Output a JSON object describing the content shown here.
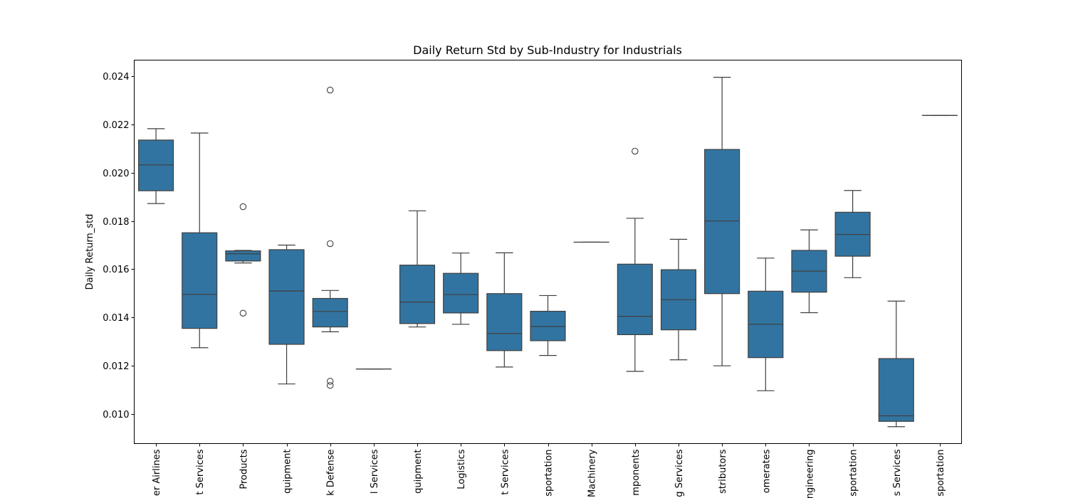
{
  "chart_data": {
    "type": "box",
    "title": "Daily Return Std by Sub-Industry for Industrials",
    "xlabel": "",
    "ylabel": "Daily Return_std",
    "ylim": [
      0.00878,
      0.02466
    ],
    "yticks": [
      0.01,
      0.012,
      0.014,
      0.016,
      0.018,
      0.02,
      0.022,
      0.024
    ],
    "ytick_labels": [
      "0.010",
      "0.012",
      "0.014",
      "0.016",
      "0.018",
      "0.020",
      "0.022",
      "0.024"
    ],
    "grid": false,
    "box_color": "#3274a1",
    "categories": [
      "er Airlines",
      "t Services",
      "Products",
      "quipment",
      "k Defense",
      "l Services",
      "quipment",
      "Logistics",
      "t Services",
      "sportation",
      "Machinery",
      "mponents",
      "g Services",
      "stributors",
      "omerates",
      "ngineering",
      "sportation",
      "s Services",
      "sportation"
    ],
    "boxes": [
      {
        "whislo": 0.01872,
        "q1": 0.01925,
        "med": 0.02032,
        "q3": 0.02135,
        "whishi": 0.02182,
        "fliers": []
      },
      {
        "whislo": 0.01275,
        "q1": 0.01355,
        "med": 0.01496,
        "q3": 0.01751,
        "whishi": 0.02164,
        "fliers": []
      },
      {
        "whislo": 0.01626,
        "q1": 0.01634,
        "med": 0.01664,
        "q3": 0.01676,
        "whishi": 0.01678,
        "fliers": [
          0.01859,
          0.01418
        ]
      },
      {
        "whislo": 0.01125,
        "q1": 0.01289,
        "med": 0.0151,
        "q3": 0.01681,
        "whishi": 0.017,
        "fliers": []
      },
      {
        "whislo": 0.01341,
        "q1": 0.01361,
        "med": 0.01425,
        "q3": 0.01479,
        "whishi": 0.01512,
        "fliers": [
          0.02342,
          0.01706,
          0.01136,
          0.01119
        ]
      },
      {
        "whislo": 0.01187,
        "q1": 0.01187,
        "med": 0.01187,
        "q3": 0.01187,
        "whishi": 0.01187,
        "fliers": []
      },
      {
        "whislo": 0.01361,
        "q1": 0.01375,
        "med": 0.01464,
        "q3": 0.01617,
        "whishi": 0.01842,
        "fliers": []
      },
      {
        "whislo": 0.01372,
        "q1": 0.01419,
        "med": 0.01495,
        "q3": 0.01583,
        "whishi": 0.01667,
        "fliers": []
      },
      {
        "whislo": 0.01195,
        "q1": 0.01263,
        "med": 0.01334,
        "q3": 0.01499,
        "whishi": 0.01668,
        "fliers": []
      },
      {
        "whislo": 0.01243,
        "q1": 0.01304,
        "med": 0.01363,
        "q3": 0.01426,
        "whishi": 0.01491,
        "fliers": []
      },
      {
        "whislo": 0.01712,
        "q1": 0.01712,
        "med": 0.01712,
        "q3": 0.01712,
        "whishi": 0.01712,
        "fliers": []
      },
      {
        "whislo": 0.01177,
        "q1": 0.01329,
        "med": 0.01405,
        "q3": 0.01621,
        "whishi": 0.01811,
        "fliers": [
          0.02089
        ]
      },
      {
        "whislo": 0.01225,
        "q1": 0.01349,
        "med": 0.01474,
        "q3": 0.01598,
        "whishi": 0.01724,
        "fliers": []
      },
      {
        "whislo": 0.012,
        "q1": 0.01499,
        "med": 0.018,
        "q3": 0.02096,
        "whishi": 0.02395,
        "fliers": []
      },
      {
        "whislo": 0.01097,
        "q1": 0.01234,
        "med": 0.01372,
        "q3": 0.01509,
        "whishi": 0.01646,
        "fliers": []
      },
      {
        "whislo": 0.0142,
        "q1": 0.01505,
        "med": 0.01592,
        "q3": 0.01678,
        "whishi": 0.01763,
        "fliers": []
      },
      {
        "whislo": 0.01565,
        "q1": 0.01654,
        "med": 0.01744,
        "q3": 0.01836,
        "whishi": 0.01926,
        "fliers": []
      },
      {
        "whislo": 0.00948,
        "q1": 0.0097,
        "med": 0.00993,
        "q3": 0.0123,
        "whishi": 0.01468,
        "fliers": []
      },
      {
        "whislo": 0.02237,
        "q1": 0.02237,
        "med": 0.02237,
        "q3": 0.02237,
        "whishi": 0.02237,
        "fliers": []
      }
    ]
  }
}
